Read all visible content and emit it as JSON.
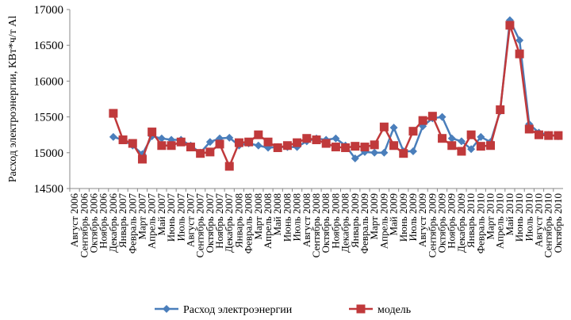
{
  "chart_data": {
    "type": "line",
    "y_label": "Расход  электроэнергии, КВт*ч/т Al",
    "categories": [
      "Август 2006",
      "Сентябрь 2006",
      "Октябрь 2006",
      "Ноябрь 2006",
      "Декабрь 2006",
      "Январь 2007",
      "Февраль 2007",
      "Март 2007",
      "Апрель 2007",
      "Май 2007",
      "Июнь 2007",
      "Июль 2007",
      "Август 2007",
      "Сентябрь 2007",
      "Октябрь 2007",
      "Ноябрь 2007",
      "Декабрь 2007",
      "Январь 2008",
      "Февраль 2008",
      "Март 2008",
      "Апрель 2008",
      "Май 2008",
      "Июнь 2008",
      "Июль 2008",
      "Август 2008",
      "Сентябрь 2008",
      "Октябрь 2008",
      "Ноябрь 2008",
      "Декабрь 2008",
      "Январь 2009",
      "Февраль 2009",
      "Март 2009",
      "Апрель 2009",
      "Май 2009",
      "Июнь 2009",
      "Июль 2009",
      "Август 2009",
      "Сентябрь 2009",
      "Октябрь 2009",
      "Ноябрь 2009",
      "Декабрь 2009",
      "Январь 2010",
      "Февраль 2010",
      "Март 2010",
      "Апрель 2010",
      "Май 2010",
      "Июнь 2010",
      "Июль 2010",
      "Август 2010",
      "Сентябрь 2010",
      "Октябрь 2010"
    ],
    "series": [
      {
        "name": "Расход электроэнергии",
        "color": "#4a7ebb",
        "marker": "diamond",
        "values": [
          null,
          null,
          null,
          null,
          15220,
          15180,
          15100,
          14980,
          15230,
          15200,
          15180,
          15180,
          15100,
          15000,
          15150,
          15200,
          15210,
          15100,
          15130,
          15100,
          15070,
          15080,
          15080,
          15080,
          15160,
          15200,
          15180,
          15200,
          15100,
          14920,
          15010,
          15000,
          15000,
          15350,
          15020,
          15020,
          15370,
          15480,
          15500,
          15200,
          15160,
          15050,
          15220,
          15150,
          15580,
          16850,
          16570,
          15400,
          15280,
          15250,
          15230
        ]
      },
      {
        "name": "модель",
        "color": "#c0393b",
        "marker": "square",
        "values": [
          null,
          null,
          null,
          null,
          15550,
          15180,
          15130,
          14910,
          15290,
          15100,
          15100,
          15150,
          15080,
          14990,
          15010,
          15120,
          14810,
          15140,
          15150,
          15250,
          15150,
          15070,
          15100,
          15140,
          15200,
          15180,
          15130,
          15080,
          15070,
          15090,
          15080,
          15110,
          15360,
          15100,
          14990,
          15300,
          15450,
          15510,
          15200,
          15100,
          15020,
          15250,
          15090,
          15100,
          15600,
          16780,
          16380,
          15330,
          15250,
          15240,
          15240
        ]
      }
    ],
    "ylim": [
      14500,
      17000
    ],
    "yticks": [
      14500,
      15000,
      15500,
      16000,
      16500,
      17000
    ],
    "grid": false,
    "legend": "bottom"
  }
}
